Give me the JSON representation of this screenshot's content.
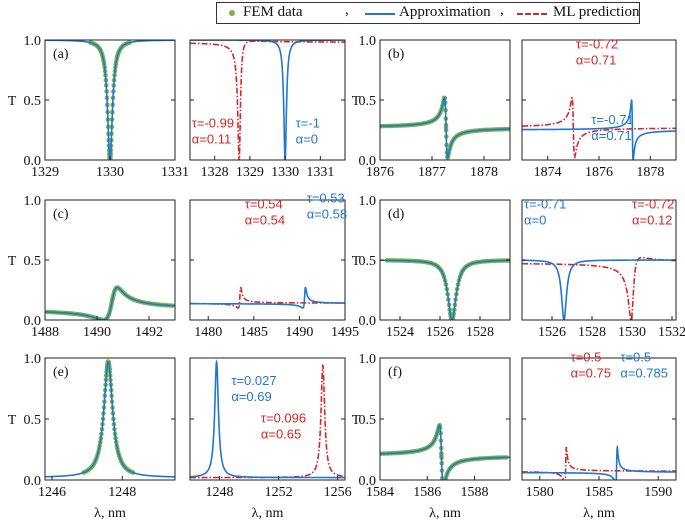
{
  "legend": {
    "fem": "FEM data",
    "approx": "Approximation",
    "ml": "ML prediction",
    "separator": ","
  },
  "colors": {
    "fem": "#7cb342",
    "approx": "#1f77d4",
    "ml": "#d62728"
  },
  "axis_labels": {
    "y": "T",
    "x": "λ, nm"
  },
  "chart_data": [
    {
      "type": "line",
      "panel": "(a)",
      "subplot": "left",
      "xlim": [
        1329,
        1331
      ],
      "ylim": [
        0,
        1
      ],
      "xticks": [
        "1329",
        "1330",
        "1331"
      ],
      "yticks": [
        "0.0",
        "0.5",
        "1.0"
      ],
      "series": [
        {
          "name": "FEM data",
          "kind": "fem",
          "model": {
            "center": 1330.0,
            "width": 0.045,
            "fano": 0,
            "base": 1.0,
            "depth": 1.0,
            "range": [
              1329.7,
              1330.3
            ]
          }
        },
        {
          "name": "Approximation",
          "kind": "approx",
          "model": {
            "center": 1330.0,
            "width": 0.045,
            "fano": 0,
            "base": 1.0,
            "depth": 1.0
          }
        }
      ]
    },
    {
      "type": "line",
      "panel": "",
      "subplot": "right",
      "xlim": [
        1327.3,
        1331.7
      ],
      "ylim": [
        0,
        1
      ],
      "xticks": [
        "1328",
        "1329",
        "1330",
        "1331"
      ],
      "yticks": [],
      "annotations": [
        {
          "kind": "ml",
          "line1": "τ=-0.99",
          "line2": "α=0.11",
          "x": 1327.35,
          "y": 0.27
        },
        {
          "kind": "approx",
          "line1": "τ=-1",
          "line2": "α=0",
          "x": 1330.3,
          "y": 0.27
        }
      ],
      "series": [
        {
          "name": "ML prediction",
          "kind": "ml",
          "model": {
            "center": 1328.7,
            "width": 0.045,
            "fano": 0.1,
            "base": 0.99,
            "depth": 1.0
          }
        },
        {
          "name": "Approximation",
          "kind": "approx",
          "model": {
            "center": 1330.0,
            "width": 0.045,
            "fano": 0,
            "base": 1.0,
            "depth": 1.0
          }
        }
      ]
    },
    {
      "type": "line",
      "panel": "(b)",
      "subplot": "left",
      "xlim": [
        1876,
        1878.5
      ],
      "ylim": [
        0,
        1
      ],
      "xticks": [
        "1876",
        "1877",
        "1878"
      ],
      "yticks": [
        "0.0",
        "0.5",
        "1.0"
      ],
      "series": [
        {
          "name": "FEM data",
          "kind": "fem",
          "model": {
            "center": 1877.27,
            "width": 0.03,
            "fano": -1.0,
            "base": 0.52,
            "depth": 0.5,
            "range": [
              1876,
              1878.5
            ]
          }
        },
        {
          "name": "Approximation",
          "kind": "approx",
          "model": {
            "center": 1877.27,
            "width": 0.03,
            "fano": -1.0,
            "base": 0.52,
            "depth": 0.5
          }
        }
      ]
    },
    {
      "type": "line",
      "panel": "",
      "subplot": "right",
      "xlim": [
        1873,
        1879
      ],
      "ylim": [
        0,
        1
      ],
      "xticks": [
        "1874",
        "1876",
        "1878"
      ],
      "yticks": [],
      "annotations": [
        {
          "kind": "ml",
          "line1": "τ=-0.72",
          "line2": "α=0.71",
          "x": 1875.1,
          "y": 0.93
        },
        {
          "kind": "approx",
          "line1": "τ=-0.71",
          "line2": "α=0.71",
          "x": 1875.7,
          "y": 0.3
        }
      ],
      "series": [
        {
          "name": "ML prediction",
          "kind": "ml",
          "model": {
            "center": 1875.0,
            "width": 0.05,
            "fano": -1.0,
            "base": 0.52,
            "depth": 0.5
          }
        },
        {
          "name": "Approximation",
          "kind": "approx",
          "model": {
            "center": 1877.3,
            "width": 0.03,
            "fano": -1.0,
            "base": 0.5,
            "depth": 0.5
          }
        }
      ]
    },
    {
      "type": "line",
      "panel": "(c)",
      "subplot": "left",
      "xlim": [
        1488,
        1493
      ],
      "ylim": [
        0,
        1
      ],
      "xticks": [
        "1488",
        "1490",
        "1492"
      ],
      "yticks": [
        "0.0",
        "0.5",
        "1.0"
      ],
      "series": [
        {
          "name": "FEM data",
          "kind": "fem",
          "model": {
            "center": 1490.6,
            "width": 0.25,
            "fano": 1.4,
            "base": 0.27,
            "depth": 0.27,
            "range": [
              1488,
              1493
            ]
          }
        },
        {
          "name": "Approximation",
          "kind": "approx",
          "model": {
            "center": 1490.6,
            "width": 0.25,
            "fano": 1.4,
            "base": 0.27,
            "depth": 0.27
          }
        }
      ]
    },
    {
      "type": "line",
      "panel": "",
      "subplot": "right",
      "xlim": [
        1478,
        1495
      ],
      "ylim": [
        0,
        1
      ],
      "xticks": [
        "1480",
        "1485",
        "1490",
        "1495"
      ],
      "yticks": [],
      "annotations": [
        {
          "kind": "ml",
          "line1": "τ=0.54",
          "line2": "α=0.54",
          "x": 1484.0,
          "y": 0.93
        },
        {
          "kind": "approx",
          "line1": "τ=0.53",
          "line2": "α=0.58",
          "x": 1490.8,
          "y": 0.98
        }
      ],
      "series": [
        {
          "name": "ML prediction",
          "kind": "ml",
          "model": {
            "center": 1483.5,
            "width": 0.12,
            "fano": 1.8,
            "base": 0.27,
            "depth": 0.17
          }
        },
        {
          "name": "Approximation",
          "kind": "approx",
          "model": {
            "center": 1490.6,
            "width": 0.12,
            "fano": 1.9,
            "base": 0.27,
            "depth": 0.17
          }
        }
      ]
    },
    {
      "type": "line",
      "panel": "(d)",
      "subplot": "left",
      "xlim": [
        1523,
        1529.5
      ],
      "ylim": [
        0,
        1
      ],
      "xticks": [
        "1524",
        "1526",
        "1528"
      ],
      "yticks": [
        "0.0",
        "0.5",
        "1.0"
      ],
      "series": [
        {
          "name": "FEM data",
          "kind": "fem",
          "model": {
            "center": 1526.6,
            "width": 0.25,
            "fano": 0,
            "base": 0.5,
            "depth": 0.5,
            "range": [
              1523,
              1529.5
            ]
          }
        },
        {
          "name": "Approximation",
          "kind": "approx",
          "model": {
            "center": 1526.6,
            "width": 0.25,
            "fano": 0,
            "base": 0.5,
            "depth": 0.5
          }
        }
      ]
    },
    {
      "type": "line",
      "panel": "",
      "subplot": "right",
      "xlim": [
        1524.5,
        1532.2
      ],
      "ylim": [
        0,
        1
      ],
      "xticks": [
        "1526",
        "1528",
        "1530",
        "1532"
      ],
      "yticks": [],
      "annotations": [
        {
          "kind": "approx",
          "line1": "τ=-0.71",
          "line2": "α=0",
          "x": 1524.6,
          "y": 0.93
        },
        {
          "kind": "ml",
          "line1": "τ=-0.72",
          "line2": "α=0.12",
          "x": 1530.0,
          "y": 0.93
        }
      ],
      "series": [
        {
          "name": "ML prediction",
          "kind": "ml",
          "model": {
            "center": 1530.0,
            "width": 0.15,
            "fano": 0.3,
            "base": 0.52,
            "depth": 0.52
          }
        },
        {
          "name": "Approximation",
          "kind": "approx",
          "model": {
            "center": 1526.6,
            "width": 0.15,
            "fano": 0,
            "base": 0.5,
            "depth": 0.5
          }
        }
      ]
    },
    {
      "type": "line",
      "panel": "(e)",
      "subplot": "left",
      "xlim": [
        1245.8,
        1249.5
      ],
      "ylim": [
        0,
        1
      ],
      "xticks": [
        "1246",
        "1248"
      ],
      "yticks": [
        "0.0",
        "0.5",
        "1.0"
      ],
      "series": [
        {
          "name": "FEM data",
          "kind": "fem",
          "peak": true,
          "model": {
            "center": 1247.6,
            "width": 0.15,
            "base": 0.02,
            "height": 0.95,
            "range": [
              1246.9,
              1248.3
            ]
          }
        },
        {
          "name": "Approximation",
          "kind": "approx",
          "peak": true,
          "model": {
            "center": 1247.6,
            "width": 0.15,
            "base": 0.02,
            "height": 0.95
          }
        }
      ]
    },
    {
      "type": "line",
      "panel": "",
      "subplot": "right",
      "xlim": [
        1246,
        1256.5
      ],
      "ylim": [
        0,
        1
      ],
      "xticks": [
        "1248",
        "1252",
        "1256"
      ],
      "yticks": [],
      "annotations": [
        {
          "kind": "approx",
          "line1": "τ=0.027",
          "line2": "α=0.69",
          "x": 1248.8,
          "y": 0.78
        },
        {
          "kind": "ml",
          "line1": "τ=0.096",
          "line2": "α=0.65",
          "x": 1250.8,
          "y": 0.47
        }
      ],
      "series": [
        {
          "name": "ML prediction",
          "kind": "ml",
          "peak": true,
          "model": {
            "center": 1255.0,
            "width": 0.15,
            "base": 0.02,
            "height": 0.92
          }
        },
        {
          "name": "Approximation",
          "kind": "approx",
          "peak": true,
          "model": {
            "center": 1247.8,
            "width": 0.15,
            "base": 0.02,
            "height": 0.95
          }
        }
      ]
    },
    {
      "type": "line",
      "panel": "(f)",
      "subplot": "left",
      "xlim": [
        1584,
        1589.5
      ],
      "ylim": [
        0,
        1
      ],
      "xticks": [
        "1584",
        "1586",
        "1588"
      ],
      "yticks": [
        "0.0",
        "0.5",
        "1.0"
      ],
      "series": [
        {
          "name": "FEM data",
          "kind": "fem",
          "model": {
            "center": 1586.6,
            "width": 0.08,
            "fano": -1.0,
            "base": 0.45,
            "depth": 0.5,
            "range": [
              1584,
              1589.5
            ]
          }
        },
        {
          "name": "Approximation",
          "kind": "approx",
          "model": {
            "center": 1586.6,
            "width": 0.08,
            "fano": -1.0,
            "base": 0.45,
            "depth": 0.5
          }
        }
      ]
    },
    {
      "type": "line",
      "panel": "",
      "subplot": "right",
      "xlim": [
        1578.5,
        1591.5
      ],
      "ylim": [
        0,
        1
      ],
      "xticks": [
        "1580",
        "1585",
        "1590"
      ],
      "yticks": [],
      "annotations": [
        {
          "kind": "ml",
          "line1": "τ=0.5",
          "line2": "α=0.75",
          "x": 1582.6,
          "y": 0.97
        },
        {
          "kind": "approx",
          "line1": "τ=0.5",
          "line2": "α=0.785",
          "x": 1586.8,
          "y": 0.97
        }
      ],
      "series": [
        {
          "name": "ML prediction",
          "kind": "ml",
          "model": {
            "center": 1582.2,
            "width": 0.06,
            "fano": 1.4,
            "base": 0.27,
            "depth": 0.3
          }
        },
        {
          "name": "Approximation",
          "kind": "approx",
          "model": {
            "center": 1586.5,
            "width": 0.06,
            "fano": 1.5,
            "base": 0.27,
            "depth": 0.3
          }
        }
      ]
    }
  ]
}
